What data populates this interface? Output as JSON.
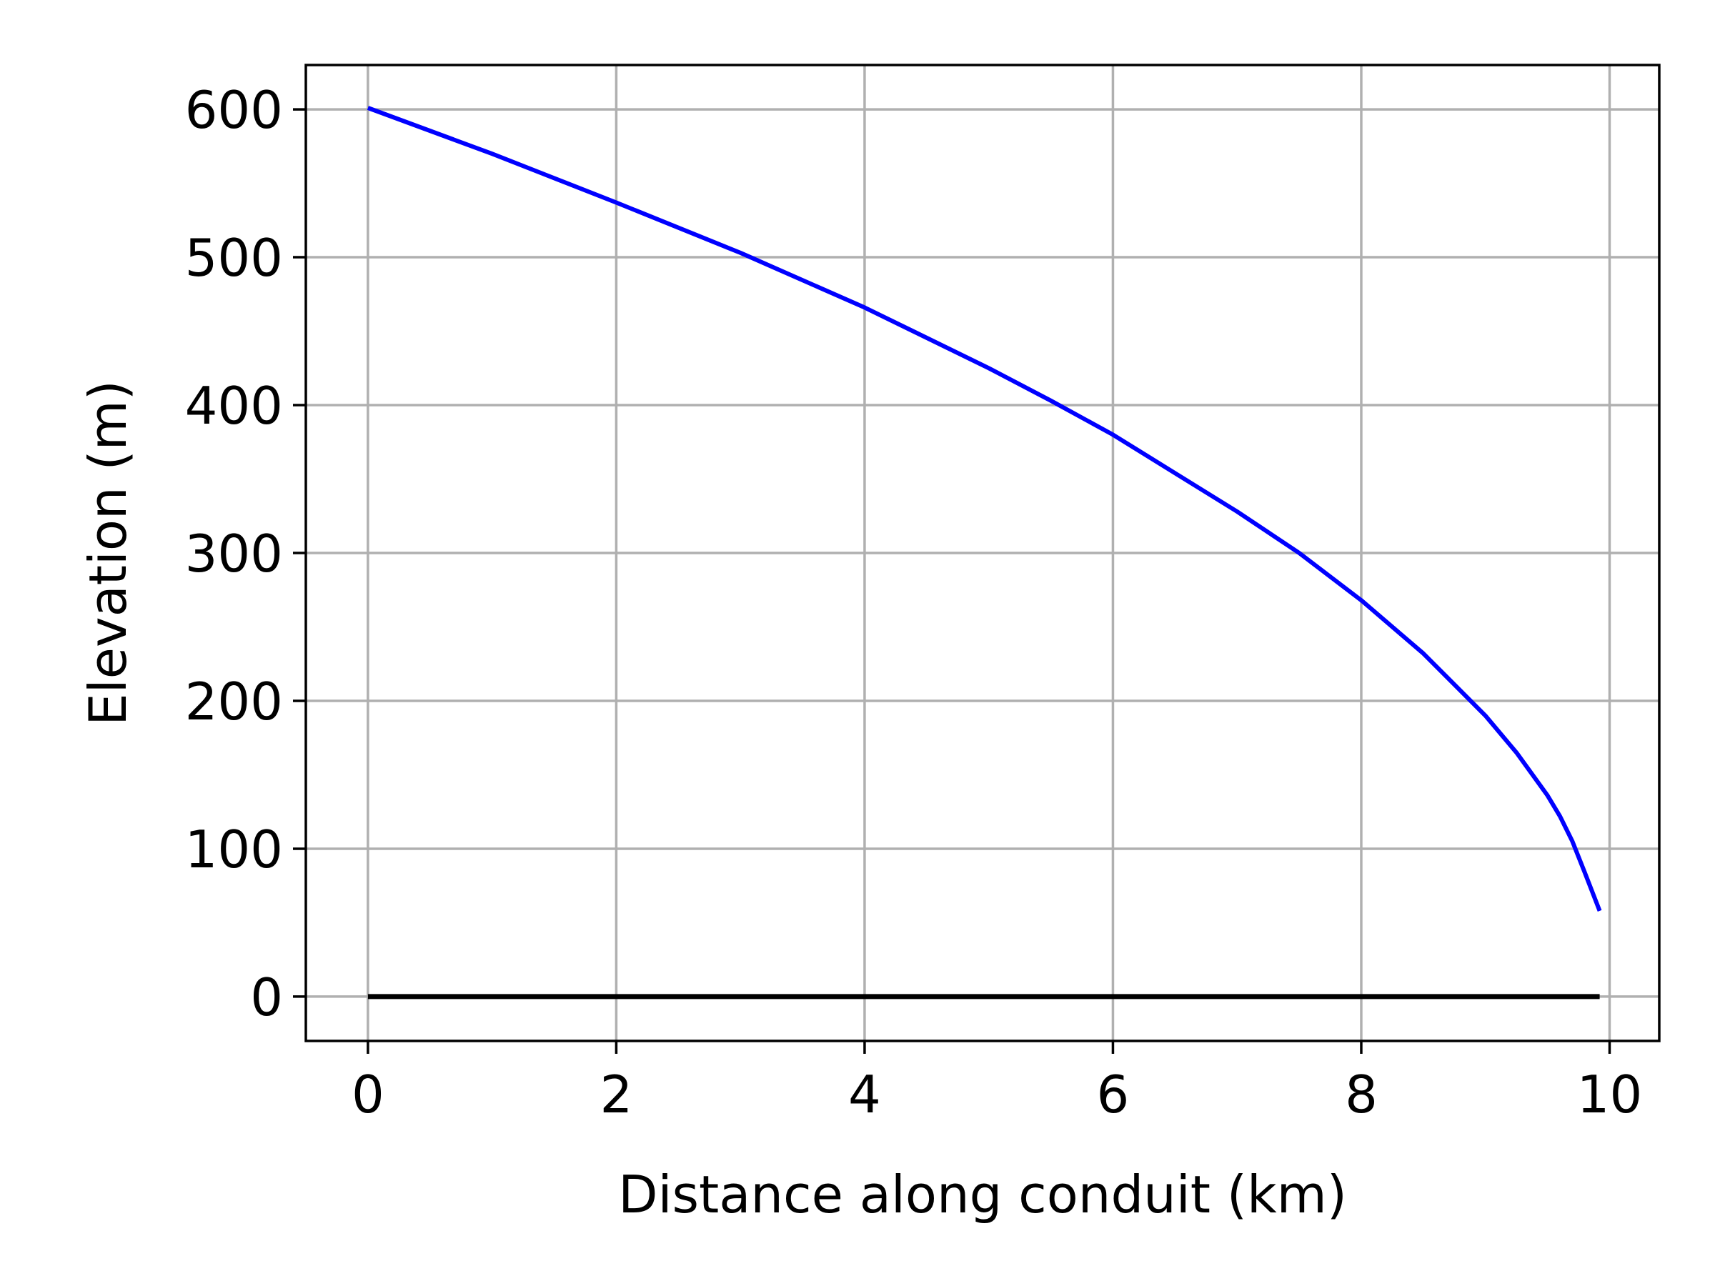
{
  "chart_data": {
    "type": "line",
    "title": "",
    "xlabel": "Distance along conduit (km)",
    "ylabel": "Elevation (m)",
    "xlim": [
      -0.5,
      10.4
    ],
    "ylim": [
      -30,
      630
    ],
    "xticks": [
      0,
      2,
      4,
      6,
      8,
      10
    ],
    "xtick_labels": [
      "0",
      "2",
      "4",
      "6",
      "8",
      "10"
    ],
    "yticks": [
      0,
      100,
      200,
      300,
      400,
      500,
      600
    ],
    "ytick_labels": [
      "0",
      "100",
      "200",
      "300",
      "400",
      "500",
      "600"
    ],
    "grid": true,
    "legend": "none",
    "series": [
      {
        "color": "#0000ff",
        "x": [
          0,
          1,
          2,
          3,
          4,
          5,
          5.5,
          6,
          7,
          7.5,
          8,
          8.5,
          9,
          9.25,
          9.5,
          9.6,
          9.7,
          9.8,
          9.92
        ],
        "y": [
          601,
          570,
          537,
          503,
          466,
          425,
          403,
          380,
          328,
          300,
          268,
          232,
          190,
          165,
          136,
          122,
          105,
          84,
          58
        ]
      },
      {
        "color": "#000000",
        "x": [
          0,
          9.92
        ],
        "y": [
          0,
          0
        ]
      }
    ],
    "colors": {
      "grid": "#b0b0b0",
      "axes": "#000000",
      "background": "#ffffff"
    }
  }
}
